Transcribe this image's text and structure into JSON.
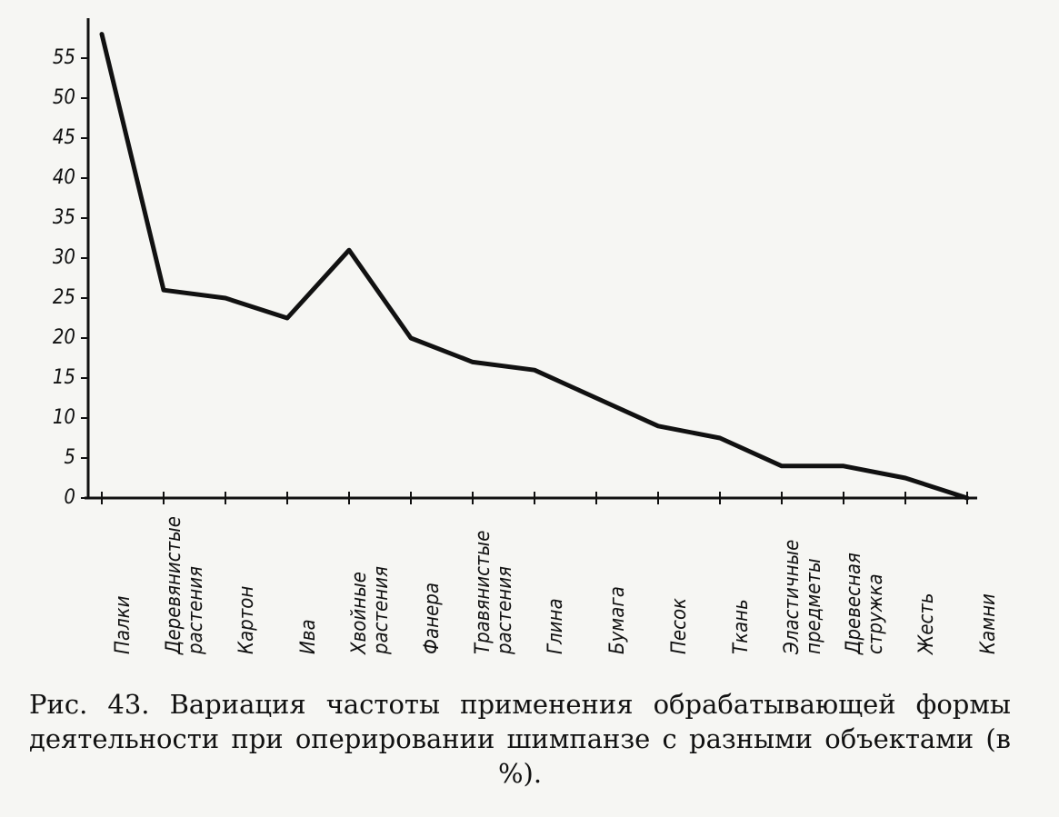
{
  "chart_data": {
    "type": "line",
    "categories": [
      "Палки",
      "Деревянистые растения",
      "Картон",
      "Ива",
      "Хвойные растения",
      "Фанера",
      "Травянистые растения",
      "Глина",
      "Бумага",
      "Песок",
      "Ткань",
      "Эластичные предметы",
      "Древесная стружка",
      "Жесть",
      "Камни"
    ],
    "values": [
      58,
      26,
      25,
      22.5,
      31,
      20,
      17,
      16,
      12.5,
      9,
      7.5,
      4,
      4,
      2.5,
      0
    ],
    "color": "#111111",
    "ylim": [
      0,
      60
    ],
    "yticks": [
      0,
      5,
      10,
      15,
      20,
      25,
      30,
      35,
      40,
      45,
      50,
      55
    ],
    "caption": "Рис. 43. Вариация частоты применения обрабатывающей формы деятельности при оперировании шимпанзе с разными объектами (в %)."
  }
}
